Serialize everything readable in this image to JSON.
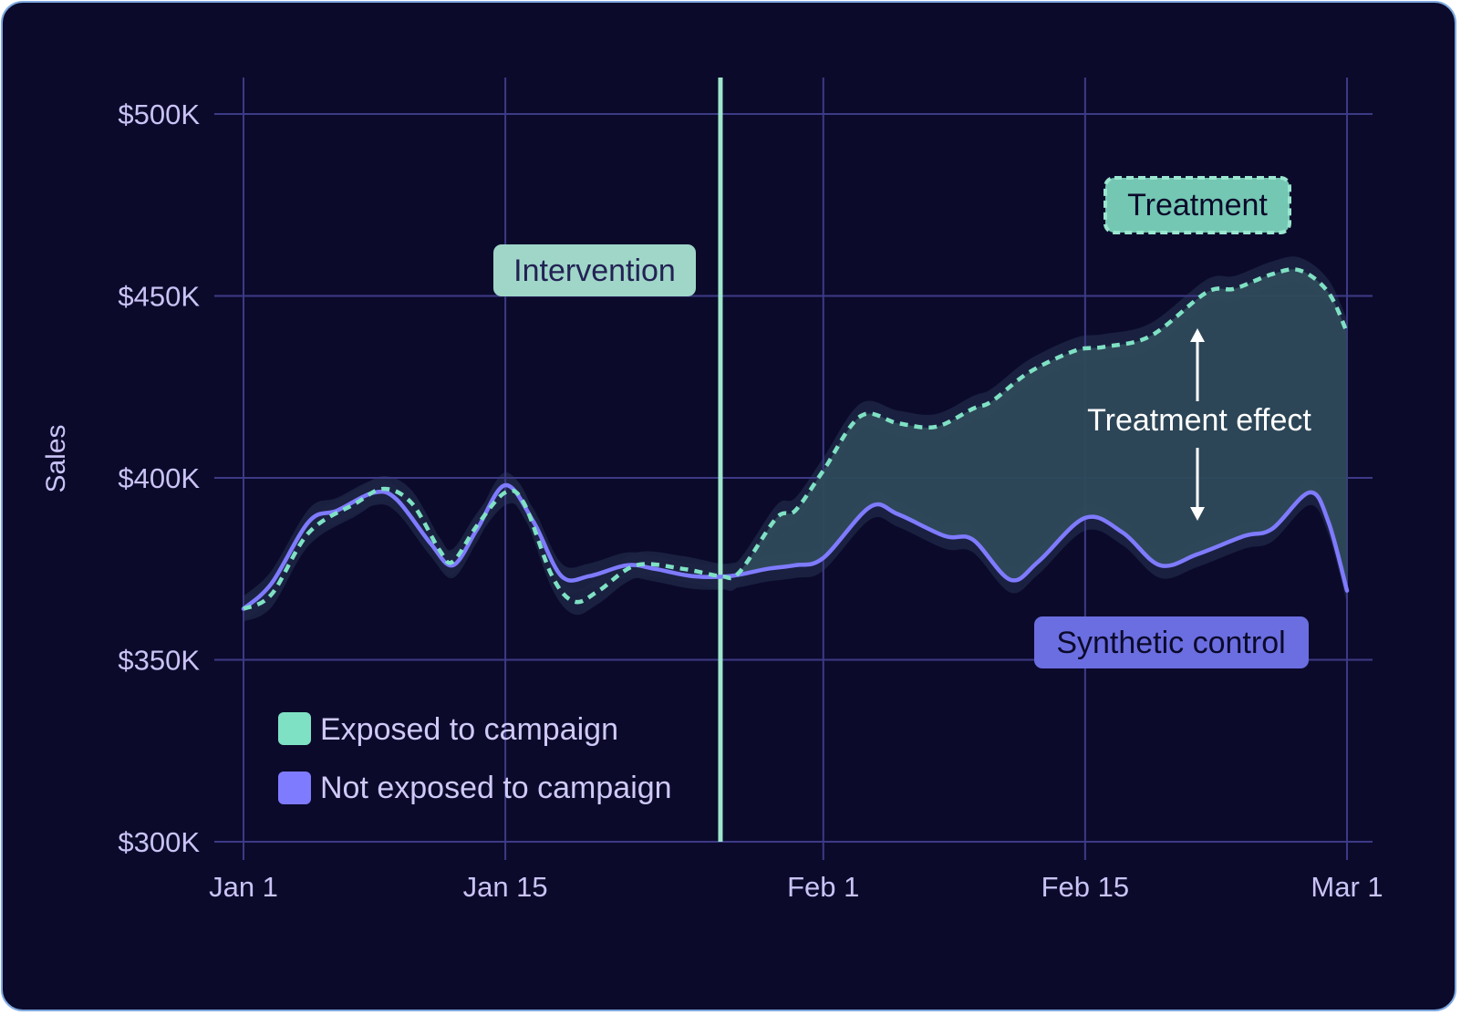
{
  "chart_data": {
    "type": "line",
    "ylabel": "Sales",
    "xlabel": "",
    "ylim": [
      300000,
      500000
    ],
    "y_ticks": [
      {
        "value": 300000,
        "label": "$300K"
      },
      {
        "value": 350000,
        "label": "$350K"
      },
      {
        "value": 400000,
        "label": "$400K"
      },
      {
        "value": 450000,
        "label": "$450K"
      },
      {
        "value": 500000,
        "label": "$500K"
      }
    ],
    "x_ticks": [
      {
        "day": 0,
        "label": "Jan 1"
      },
      {
        "day": 14,
        "label": "Jan 15"
      },
      {
        "day": 31,
        "label": "Feb 1"
      },
      {
        "day": 45,
        "label": "Feb 15"
      },
      {
        "day": 59,
        "label": "Mar 1"
      }
    ],
    "intervention_day": 25.5,
    "grid": true,
    "series": [
      {
        "name": "Exposed to campaign",
        "color": "#7fe1c4",
        "style": "dashed",
        "points": [
          [
            0,
            364000
          ],
          [
            1.5,
            368000
          ],
          [
            3.5,
            385000
          ],
          [
            6,
            393000
          ],
          [
            7.5,
            397000
          ],
          [
            9,
            393000
          ],
          [
            10.5,
            380000
          ],
          [
            11.2,
            377000
          ],
          [
            12.5,
            387000
          ],
          [
            14,
            396000
          ],
          [
            15,
            393000
          ],
          [
            16.5,
            373000
          ],
          [
            17.7,
            366000
          ],
          [
            19,
            369000
          ],
          [
            21,
            376000
          ],
          [
            23.5,
            375000
          ],
          [
            25.5,
            373000
          ],
          [
            26.5,
            374000
          ],
          [
            28.5,
            389000
          ],
          [
            29.5,
            391000
          ],
          [
            31,
            402000
          ],
          [
            33,
            417000
          ],
          [
            35,
            415000
          ],
          [
            37,
            414000
          ],
          [
            39,
            419000
          ],
          [
            40,
            421000
          ],
          [
            42,
            429000
          ],
          [
            44.5,
            435000
          ],
          [
            46,
            436000
          ],
          [
            48.5,
            439000
          ],
          [
            51.5,
            451000
          ],
          [
            53,
            452000
          ],
          [
            55,
            456000
          ],
          [
            56.5,
            457000
          ],
          [
            58,
            451000
          ],
          [
            59,
            440000
          ]
        ]
      },
      {
        "name": "Not exposed to campaign",
        "color": "#7f7bff",
        "style": "solid",
        "points": [
          [
            0,
            364000
          ],
          [
            1.5,
            371000
          ],
          [
            3.5,
            388000
          ],
          [
            5,
            391000
          ],
          [
            7,
            396000
          ],
          [
            8.2,
            394000
          ],
          [
            10,
            382000
          ],
          [
            11.2,
            376000
          ],
          [
            12.5,
            386000
          ],
          [
            14,
            398000
          ],
          [
            15.5,
            388000
          ],
          [
            17,
            373000
          ],
          [
            18.5,
            373000
          ],
          [
            20.5,
            376000
          ],
          [
            22,
            375000
          ],
          [
            24,
            373000
          ],
          [
            26,
            373000
          ],
          [
            28,
            375000
          ],
          [
            29.5,
            376000
          ],
          [
            31,
            378000
          ],
          [
            33.5,
            392000
          ],
          [
            35,
            390000
          ],
          [
            37.5,
            384000
          ],
          [
            39,
            383000
          ],
          [
            41,
            372000
          ],
          [
            42.5,
            377000
          ],
          [
            45,
            389000
          ],
          [
            47,
            385000
          ],
          [
            49,
            376000
          ],
          [
            51,
            379000
          ],
          [
            53.5,
            384000
          ],
          [
            55,
            386000
          ],
          [
            57,
            396000
          ],
          [
            58,
            388000
          ],
          [
            59,
            369000
          ]
        ]
      }
    ],
    "annotations": {
      "intervention": "Intervention",
      "treatment": "Treatment",
      "treatment_effect": "Treatment effect",
      "synthetic_control": "Synthetic control"
    },
    "legend": {
      "placement": "bottom-left",
      "items": [
        {
          "label": "Exposed to campaign",
          "color": "#7fe1c4"
        },
        {
          "label": "Not exposed to campaign",
          "color": "#7f7bff"
        }
      ]
    }
  },
  "colors": {
    "background": "#0b0a2b",
    "grid": "#3d3a86",
    "intervention_line": "#9fe6cc",
    "treatment_fill": "#2e4a5a",
    "band_fill": "#1c2242",
    "arrow": "#ffffff"
  }
}
